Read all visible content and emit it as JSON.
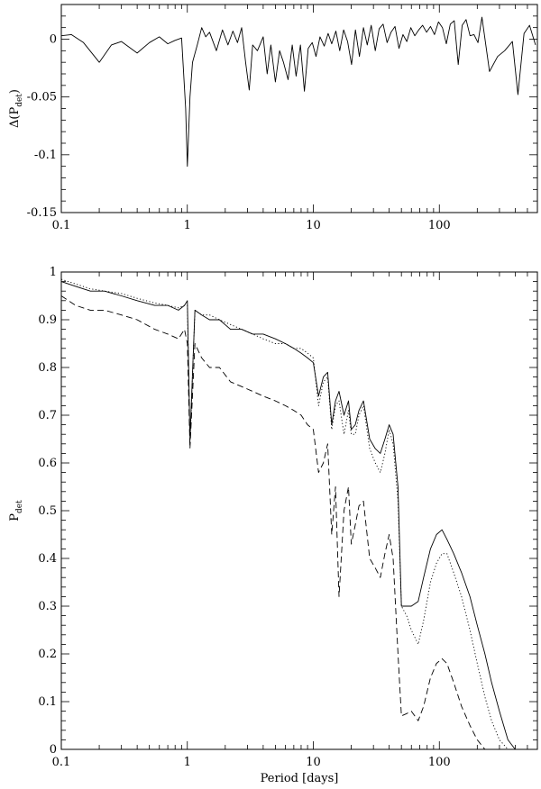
{
  "chart_data": [
    {
      "type": "line",
      "xscale": "log",
      "xlim": [
        0.1,
        600
      ],
      "ylim": [
        -0.15,
        0.03
      ],
      "xticks": [
        0.1,
        1,
        10,
        100
      ],
      "xtick_labels": [
        "0.1",
        "1",
        "10",
        "100"
      ],
      "yticks": [
        0,
        -0.05,
        -0.1,
        -0.15
      ],
      "ytick_labels": [
        "0",
        "-0.05",
        "-0.1",
        "-0.15"
      ],
      "ylabel": "Δ(P",
      "ylabel_sub": "det",
      "ylabel_tail": ")",
      "xlabel": "",
      "series": [
        {
          "style": "solid",
          "x": [
            0.1,
            0.12,
            0.15,
            0.2,
            0.25,
            0.3,
            0.4,
            0.5,
            0.6,
            0.7,
            0.8,
            0.9,
            0.97,
            1.0,
            1.05,
            1.1,
            1.2,
            1.3,
            1.4,
            1.5,
            1.7,
            1.9,
            2.1,
            2.3,
            2.5,
            2.7,
            2.9,
            3.1,
            3.3,
            3.6,
            4.0,
            4.3,
            4.6,
            5.0,
            5.4,
            5.8,
            6.3,
            6.8,
            7.3,
            7.9,
            8.5,
            9.1,
            9.8,
            10.5,
            11.3,
            12.2,
            13.1,
            14.0,
            15.1,
            16.2,
            17.4,
            18.7,
            20.1,
            21.6,
            23.2,
            25.0,
            26.8,
            28.8,
            31.0,
            33.3,
            35.8,
            38.5,
            41.4,
            44.5,
            47.8,
            51.4,
            55.2,
            59.4,
            63.8,
            68.6,
            73.7,
            79.2,
            85.2,
            91.5,
            98.4,
            105.8,
            113.7,
            122.2,
            131.3,
            141.2,
            151.8,
            163.1,
            175.3,
            188.5,
            202.6,
            217.7,
            250,
            290,
            330,
            380,
            420,
            470,
            520,
            580
          ],
          "y": [
            0.003,
            0.004,
            -0.003,
            -0.02,
            -0.005,
            -0.002,
            -0.012,
            -0.003,
            0.002,
            -0.004,
            -0.001,
            0.001,
            -0.06,
            -0.11,
            -0.05,
            -0.02,
            -0.005,
            0.01,
            0.002,
            0.006,
            -0.01,
            0.008,
            -0.005,
            0.007,
            -0.003,
            0.01,
            -0.02,
            -0.044,
            -0.005,
            -0.01,
            0.002,
            -0.03,
            -0.005,
            -0.037,
            -0.01,
            -0.02,
            -0.035,
            -0.005,
            -0.032,
            -0.005,
            -0.045,
            -0.008,
            -0.003,
            -0.015,
            0.002,
            -0.006,
            0.005,
            -0.004,
            0.007,
            -0.01,
            0.008,
            -0.002,
            -0.022,
            0.008,
            -0.015,
            0.01,
            -0.005,
            0.012,
            -0.01,
            0.009,
            0.013,
            -0.003,
            0.006,
            0.011,
            -0.008,
            0.004,
            -0.002,
            0.01,
            0.003,
            0.008,
            0.012,
            0.006,
            0.011,
            0.004,
            0.015,
            0.01,
            -0.004,
            0.013,
            0.016,
            -0.022,
            0.012,
            0.017,
            0.003,
            0.004,
            -0.003,
            0.019,
            -0.028,
            -0.015,
            -0.01,
            -0.002,
            -0.048,
            0.005,
            0.012,
            -0.005
          ]
        }
      ]
    },
    {
      "type": "line",
      "xscale": "log",
      "xlim": [
        0.1,
        600
      ],
      "ylim": [
        0,
        1
      ],
      "xticks": [
        0.1,
        1,
        10,
        100
      ],
      "xtick_labels": [
        "0.1",
        "1",
        "10",
        "100"
      ],
      "yticks": [
        0,
        0.1,
        0.2,
        0.3,
        0.4,
        0.5,
        0.6,
        0.7,
        0.8,
        0.9,
        1
      ],
      "ytick_labels": [
        "0",
        "0.1",
        "0.2",
        "0.3",
        "0.4",
        "0.5",
        "0.6",
        "0.7",
        "0.8",
        "0.9",
        "1"
      ],
      "ylabel": "P",
      "ylabel_sub": "det",
      "xlabel": "Period [days]",
      "series": [
        {
          "style": "solid",
          "x": [
            0.1,
            0.13,
            0.17,
            0.22,
            0.3,
            0.4,
            0.55,
            0.7,
            0.85,
            0.95,
            1.0,
            1.05,
            1.15,
            1.3,
            1.5,
            1.8,
            2.2,
            2.7,
            3.3,
            4.0,
            5.0,
            6.0,
            7.0,
            8.0,
            9.0,
            10.0,
            11.0,
            12.0,
            13.0,
            14.0,
            15.0,
            16.0,
            17.5,
            19.0,
            20.0,
            21.5,
            23.0,
            25.0,
            28.0,
            31.0,
            34.0,
            37.0,
            40.0,
            43.0,
            47.0,
            50.0,
            55.0,
            60.0,
            68.0,
            75.0,
            85.0,
            95.0,
            105.0,
            115.0,
            130.0,
            150.0,
            175.0,
            200.0,
            230.0,
            260.0,
            300.0,
            350.0,
            400.0,
            450.0
          ],
          "y": [
            0.98,
            0.97,
            0.96,
            0.96,
            0.95,
            0.94,
            0.93,
            0.93,
            0.92,
            0.93,
            0.94,
            0.65,
            0.92,
            0.91,
            0.9,
            0.9,
            0.88,
            0.88,
            0.87,
            0.87,
            0.86,
            0.85,
            0.84,
            0.83,
            0.82,
            0.81,
            0.74,
            0.78,
            0.79,
            0.68,
            0.73,
            0.75,
            0.7,
            0.73,
            0.67,
            0.68,
            0.71,
            0.73,
            0.65,
            0.63,
            0.62,
            0.65,
            0.68,
            0.66,
            0.55,
            0.3,
            0.3,
            0.3,
            0.31,
            0.36,
            0.42,
            0.45,
            0.46,
            0.44,
            0.41,
            0.37,
            0.32,
            0.26,
            0.2,
            0.14,
            0.08,
            0.02,
            0.0,
            0.0
          ]
        },
        {
          "style": "dotted",
          "x": [
            0.1,
            0.13,
            0.17,
            0.22,
            0.3,
            0.4,
            0.55,
            0.7,
            0.85,
            0.95,
            1.0,
            1.05,
            1.15,
            1.3,
            1.5,
            1.8,
            2.2,
            2.7,
            3.3,
            4.0,
            5.0,
            6.0,
            7.0,
            8.0,
            9.0,
            10.0,
            11.0,
            12.0,
            13.0,
            14.0,
            15.0,
            16.0,
            17.5,
            19.0,
            20.0,
            21.5,
            23.0,
            25.0,
            28.0,
            31.0,
            34.0,
            37.0,
            40.0,
            43.0,
            47.0,
            50.0,
            55.0,
            60.0,
            68.0,
            75.0,
            85.0,
            95.0,
            105.0,
            115.0,
            130.0,
            150.0,
            175.0,
            200.0,
            230.0,
            260.0,
            300.0,
            350.0
          ],
          "y": [
            0.985,
            0.975,
            0.965,
            0.96,
            0.955,
            0.945,
            0.935,
            0.93,
            0.925,
            0.93,
            0.93,
            0.64,
            0.92,
            0.91,
            0.91,
            0.9,
            0.89,
            0.88,
            0.87,
            0.86,
            0.85,
            0.85,
            0.84,
            0.84,
            0.83,
            0.82,
            0.72,
            0.77,
            0.78,
            0.67,
            0.72,
            0.73,
            0.66,
            0.71,
            0.66,
            0.66,
            0.7,
            0.72,
            0.63,
            0.6,
            0.58,
            0.62,
            0.67,
            0.64,
            0.52,
            0.3,
            0.28,
            0.25,
            0.22,
            0.27,
            0.35,
            0.39,
            0.41,
            0.41,
            0.37,
            0.32,
            0.25,
            0.18,
            0.11,
            0.06,
            0.02,
            0.0
          ]
        },
        {
          "style": "dashed",
          "x": [
            0.1,
            0.13,
            0.17,
            0.22,
            0.3,
            0.4,
            0.55,
            0.7,
            0.85,
            0.95,
            1.0,
            1.05,
            1.15,
            1.3,
            1.5,
            1.8,
            2.2,
            2.7,
            3.3,
            4.0,
            5.0,
            6.0,
            7.0,
            8.0,
            9.0,
            10.0,
            11.0,
            12.0,
            13.0,
            14.0,
            15.0,
            16.0,
            17.5,
            19.0,
            20.0,
            21.5,
            23.0,
            25.0,
            28.0,
            31.0,
            34.0,
            37.0,
            40.0,
            43.0,
            47.0,
            50.0,
            55.0,
            60.0,
            68.0,
            75.0,
            85.0,
            95.0,
            105.0,
            115.0,
            130.0,
            150.0,
            175.0,
            200.0,
            230.0,
            260.0,
            300.0
          ],
          "y": [
            0.95,
            0.93,
            0.92,
            0.92,
            0.91,
            0.9,
            0.88,
            0.87,
            0.86,
            0.88,
            0.85,
            0.63,
            0.85,
            0.82,
            0.8,
            0.8,
            0.77,
            0.76,
            0.75,
            0.74,
            0.73,
            0.72,
            0.71,
            0.7,
            0.68,
            0.67,
            0.58,
            0.6,
            0.64,
            0.45,
            0.55,
            0.32,
            0.5,
            0.55,
            0.43,
            0.47,
            0.51,
            0.52,
            0.4,
            0.38,
            0.36,
            0.41,
            0.45,
            0.4,
            0.2,
            0.07,
            0.075,
            0.08,
            0.06,
            0.09,
            0.15,
            0.18,
            0.19,
            0.18,
            0.14,
            0.09,
            0.05,
            0.02,
            0.0,
            0.0,
            0.0
          ]
        }
      ]
    }
  ]
}
